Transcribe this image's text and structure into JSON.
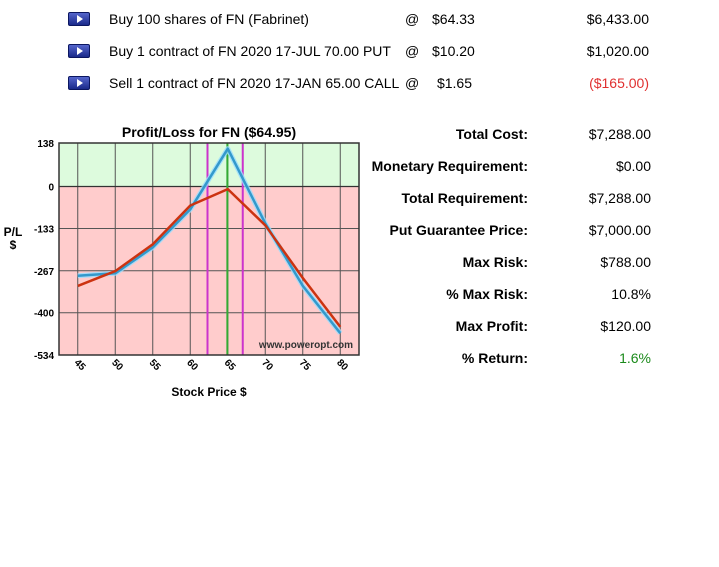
{
  "trades": [
    {
      "description": "Buy 100 shares of FN (Fabrinet)",
      "at": "@",
      "price": "$64.33",
      "total": "$6,433.00",
      "negative": false
    },
    {
      "description": "Buy 1 contract of FN 2020 17-JUL 70.00 PUT",
      "at": "@",
      "price": "$10.20",
      "total": "$1,020.00",
      "negative": false
    },
    {
      "description": "Sell 1 contract of FN 2020 17-JAN 65.00 CALL",
      "at": "@",
      "price": "$1.65",
      "total": "($165.00)",
      "negative": true
    }
  ],
  "summary": [
    {
      "label": "Total Cost:",
      "value": "$7,288.00"
    },
    {
      "label": "Monetary Requirement:",
      "value": "$0.00"
    },
    {
      "label": "Total Requirement:",
      "value": "$7,288.00"
    },
    {
      "label": "Put Guarantee Price:",
      "value": "$7,000.00"
    },
    {
      "label": "Max Risk:",
      "value": "$788.00"
    },
    {
      "label": "% Max Risk:",
      "value": "10.8%"
    },
    {
      "label": "Max Profit:",
      "value": "$120.00"
    },
    {
      "label": "% Return:",
      "value": "1.6%",
      "positive": true
    }
  ],
  "colors": {
    "profit_zone": "#ddfbdd",
    "loss_zone": "#ffcccc",
    "series_blue": "#3399cc",
    "series_blue_glow": "#99ddff",
    "series_red": "#cc3311",
    "marker_magenta": "#cc33cc",
    "marker_green": "#33aa33",
    "negative_text": "#e03030",
    "positive_text": "#1a8a1a"
  },
  "chart_data": {
    "type": "line",
    "title": "Profit/Loss for FN ($64.95)",
    "xlabel": "Stock Price $",
    "ylabel": "P/L $",
    "xlim": [
      42.5,
      82.5
    ],
    "ylim": [
      -534,
      138
    ],
    "x_ticks": [
      45,
      50,
      55,
      60,
      65,
      70,
      75,
      80
    ],
    "y_tick_labels": [
      "138",
      "0",
      "-133",
      "-267",
      "-400",
      "-534"
    ],
    "y_tick_values": [
      138,
      0,
      -133,
      -267,
      -400,
      -534
    ],
    "profit_zone_above": 0,
    "watermark": "www.poweropt.com",
    "grid": true,
    "series": [
      {
        "color_key": "series_blue",
        "x": [
          45,
          50,
          55,
          60,
          65,
          70,
          75,
          80
        ],
        "y": [
          -283,
          -275,
          -193,
          -72,
          120,
          -117,
          -315,
          -465
        ]
      },
      {
        "color_key": "series_red",
        "x": [
          45,
          50,
          55,
          60,
          65,
          70,
          75,
          80
        ],
        "y": [
          -315,
          -268,
          -183,
          -60,
          -8,
          -123,
          -290,
          -445
        ]
      }
    ],
    "vertical_markers": [
      {
        "x": 62.3,
        "color_key": "marker_magenta"
      },
      {
        "x": 64.95,
        "color_key": "marker_green"
      },
      {
        "x": 67.0,
        "color_key": "marker_magenta"
      }
    ]
  }
}
